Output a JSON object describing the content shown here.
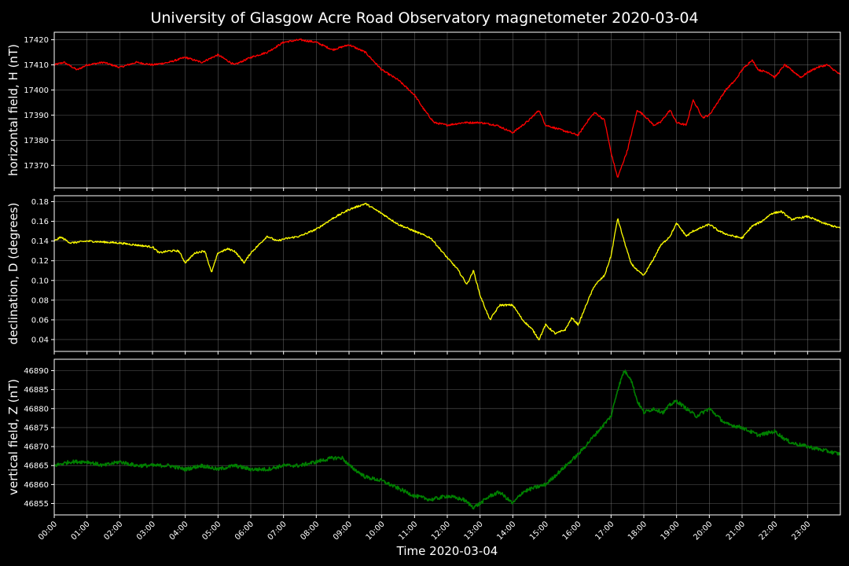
{
  "chart_data": [
    {
      "type": "line",
      "title": "University of Glasgow Acre Road Observatory magnetometer 2020-03-04",
      "ylabel": "horizontal field, H (nT)",
      "color": "#ff0000",
      "ylim": [
        17361,
        17423
      ],
      "yticks": [
        17370,
        17380,
        17390,
        17400,
        17410,
        17420
      ],
      "grid": true,
      "x_hours": [
        0,
        0.3,
        0.7,
        1.0,
        1.5,
        2.0,
        2.5,
        3.0,
        3.5,
        4.0,
        4.5,
        5.0,
        5.5,
        6.0,
        6.5,
        7.0,
        7.5,
        8.0,
        8.5,
        9.0,
        9.5,
        10.0,
        10.5,
        11.0,
        11.3,
        11.6,
        12.0,
        12.5,
        13.0,
        13.5,
        14.0,
        14.5,
        14.8,
        15.0,
        15.5,
        16.0,
        16.3,
        16.5,
        16.8,
        17.0,
        17.2,
        17.5,
        17.8,
        18.0,
        18.3,
        18.5,
        18.8,
        19.0,
        19.3,
        19.5,
        19.8,
        20.0,
        20.3,
        20.5,
        20.8,
        21.0,
        21.3,
        21.5,
        21.8,
        22.0,
        22.3,
        22.5,
        22.8,
        23.0,
        23.3,
        23.6,
        24.0
      ],
      "values": [
        17410,
        17411,
        17408,
        17410,
        17411,
        17409,
        17411,
        17410,
        17411,
        17413,
        17411,
        17414,
        17410,
        17413,
        17415,
        17419,
        17420,
        17419,
        17416,
        17418,
        17415,
        17408,
        17404,
        17398,
        17392,
        17387,
        17386,
        17387,
        17387,
        17386,
        17383,
        17388,
        17392,
        17386,
        17384,
        17382,
        17388,
        17391,
        17388,
        17375,
        17365,
        17376,
        17392,
        17390,
        17386,
        17387,
        17392,
        17387,
        17386,
        17396,
        17389,
        17390,
        17396,
        17400,
        17404,
        17408,
        17412,
        17408,
        17407,
        17405,
        17410,
        17408,
        17405,
        17407,
        17409,
        17410,
        17406
      ]
    },
    {
      "type": "line",
      "ylabel": "declination, D (degrees)",
      "color": "#ffff00",
      "ylim": [
        0.028,
        0.186
      ],
      "yticks": [
        0.04,
        0.06,
        0.08,
        0.1,
        0.12,
        0.14,
        0.16,
        0.18
      ],
      "grid": true,
      "x_hours": [
        0,
        0.2,
        0.5,
        1.0,
        1.5,
        2.0,
        2.5,
        3.0,
        3.2,
        3.5,
        3.8,
        4.0,
        4.3,
        4.6,
        4.8,
        5.0,
        5.3,
        5.5,
        5.8,
        6.0,
        6.3,
        6.5,
        6.8,
        7.0,
        7.5,
        8.0,
        8.5,
        9.0,
        9.5,
        10.0,
        10.5,
        11.0,
        11.5,
        12.0,
        12.3,
        12.6,
        12.8,
        13.0,
        13.3,
        13.6,
        14.0,
        14.3,
        14.6,
        14.8,
        15.0,
        15.3,
        15.6,
        15.8,
        16.0,
        16.3,
        16.5,
        16.8,
        17.0,
        17.2,
        17.4,
        17.6,
        17.8,
        18.0,
        18.3,
        18.5,
        18.8,
        19.0,
        19.3,
        19.5,
        20.0,
        20.3,
        20.6,
        21.0,
        21.3,
        21.6,
        21.9,
        22.2,
        22.5,
        23.0,
        23.5,
        24.0
      ],
      "values": [
        0.14,
        0.144,
        0.138,
        0.14,
        0.139,
        0.138,
        0.136,
        0.134,
        0.128,
        0.13,
        0.13,
        0.118,
        0.128,
        0.13,
        0.108,
        0.128,
        0.132,
        0.13,
        0.118,
        0.128,
        0.138,
        0.145,
        0.14,
        0.142,
        0.145,
        0.152,
        0.163,
        0.172,
        0.178,
        0.168,
        0.157,
        0.15,
        0.143,
        0.123,
        0.112,
        0.096,
        0.11,
        0.085,
        0.06,
        0.075,
        0.075,
        0.06,
        0.05,
        0.04,
        0.055,
        0.046,
        0.05,
        0.062,
        0.055,
        0.08,
        0.095,
        0.105,
        0.125,
        0.163,
        0.14,
        0.118,
        0.11,
        0.105,
        0.122,
        0.135,
        0.145,
        0.158,
        0.145,
        0.15,
        0.157,
        0.15,
        0.146,
        0.143,
        0.155,
        0.16,
        0.168,
        0.17,
        0.162,
        0.165,
        0.158,
        0.153
      ]
    },
    {
      "type": "line",
      "ylabel": "vertical field, Z (nT)",
      "color": "#008000",
      "ylim": [
        46852,
        46893
      ],
      "yticks": [
        46855,
        46860,
        46865,
        46870,
        46875,
        46880,
        46885,
        46890
      ],
      "grid": true,
      "x_hours": [
        0,
        0.5,
        1.0,
        1.5,
        2.0,
        2.5,
        3.0,
        3.5,
        4.0,
        4.5,
        5.0,
        5.5,
        6.0,
        6.5,
        7.0,
        7.5,
        8.0,
        8.5,
        8.8,
        9.0,
        9.5,
        10.0,
        10.5,
        11.0,
        11.5,
        12.0,
        12.5,
        12.8,
        13.0,
        13.3,
        13.6,
        14.0,
        14.3,
        14.6,
        15.0,
        15.5,
        16.0,
        16.5,
        17.0,
        17.2,
        17.4,
        17.6,
        17.8,
        18.0,
        18.3,
        18.6,
        18.8,
        19.0,
        19.3,
        19.6,
        20.0,
        20.5,
        21.0,
        21.5,
        22.0,
        22.3,
        22.5,
        23.0,
        23.5,
        24.0
      ],
      "values": [
        46865,
        46866,
        46866,
        46865,
        46866,
        46865,
        46865,
        46865,
        46864,
        46865,
        46864,
        46865,
        46864,
        46864,
        46865,
        46865,
        46866,
        46867,
        46867,
        46865,
        46862,
        46861,
        46859,
        46857,
        46856,
        46857,
        46856,
        46854,
        46855,
        46857,
        46858,
        46855,
        46858,
        46859,
        46860,
        46864,
        46868,
        46873,
        46878,
        46885,
        46890,
        46888,
        46882,
        46879,
        46880,
        46879,
        46881,
        46882,
        46880,
        46878,
        46880,
        46876,
        46875,
        46873,
        46874,
        46872,
        46871,
        46870,
        46869,
        46868
      ]
    }
  ],
  "x_axis": {
    "label": "Time 2020-03-04",
    "range_hours": [
      0,
      24
    ],
    "ticks": [
      "00:00",
      "01:00",
      "02:00",
      "03:00",
      "04:00",
      "05:00",
      "06:00",
      "07:00",
      "08:00",
      "09:00",
      "10:00",
      "11:00",
      "12:00",
      "13:00",
      "14:00",
      "15:00",
      "16:00",
      "17:00",
      "18:00",
      "19:00",
      "20:00",
      "21:00",
      "22:00",
      "23:00"
    ]
  },
  "colors": {
    "background": "#000000",
    "text": "#ffffff",
    "grid": "#808080"
  }
}
